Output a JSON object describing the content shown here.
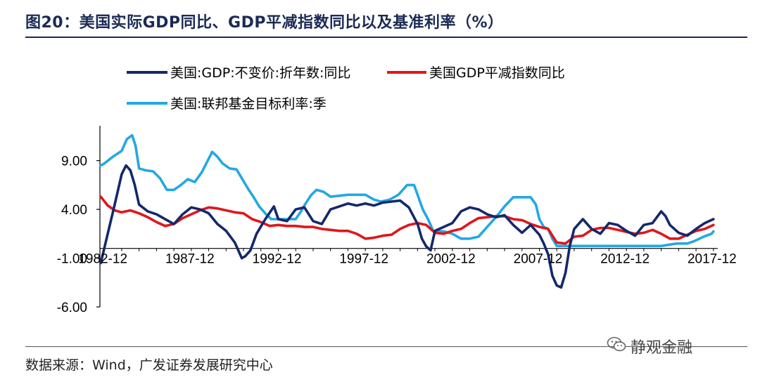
{
  "header": {
    "title": "图20：美国实际GDP同比、GDP平减指数同比以及基准利率（%）"
  },
  "footer": {
    "source": "数据来源：Wind，广发证券发展研究中心",
    "brand": "静观金融"
  },
  "colors": {
    "gdp": "#14286b",
    "deflator": "#e0161b",
    "fedfunds": "#23a8e2",
    "title": "#1b2a55"
  },
  "chart_data": {
    "type": "line",
    "title": "美国实际GDP同比、GDP平减指数同比以及基准利率（%）",
    "xlabel": "",
    "ylabel": "",
    "xlim": [
      1982.75,
      2018.25
    ],
    "ylim": [
      -6,
      12
    ],
    "y_ticks": [
      9.0,
      4.0,
      -1.0,
      -6.0
    ],
    "y_tick_labels": [
      "9.00",
      "4.00",
      "-1.00",
      "-6.00"
    ],
    "x_tick_positions": [
      1982.92,
      1987.92,
      1992.92,
      1997.92,
      2002.92,
      2007.92,
      2012.92,
      2017.92
    ],
    "x_tick_labels": [
      "1982-12",
      "1987-12",
      "1992-12",
      "1997-12",
      "2002-12",
      "2007-12",
      "2012-12",
      "2017-12"
    ],
    "legend_placement": "top",
    "series": [
      {
        "name": "美国:GDP:不变价:折年数:同比",
        "color": "#14286b",
        "x": [
          1982.8,
          1983.2,
          1983.6,
          1984.0,
          1984.25,
          1984.5,
          1984.75,
          1985.0,
          1985.5,
          1986.0,
          1986.5,
          1987.0,
          1987.5,
          1988.0,
          1988.5,
          1989.0,
          1989.5,
          1990.0,
          1990.5,
          1990.9,
          1991.1,
          1991.4,
          1991.75,
          1992.25,
          1992.75,
          1993.0,
          1993.5,
          1994.0,
          1994.5,
          1995.0,
          1995.5,
          1996.0,
          1996.5,
          1997.0,
          1997.5,
          1998.0,
          1998.5,
          1999.0,
          1999.5,
          2000.0,
          2000.5,
          2001.0,
          2001.25,
          2001.5,
          2001.75,
          2002.0,
          2002.5,
          2003.0,
          2003.5,
          2004.0,
          2004.5,
          2005.0,
          2005.5,
          2006.0,
          2006.5,
          2007.0,
          2007.5,
          2008.0,
          2008.25,
          2008.5,
          2008.75,
          2009.0,
          2009.25,
          2009.5,
          2009.75,
          2010.0,
          2010.5,
          2011.0,
          2011.5,
          2012.0,
          2012.5,
          2013.0,
          2013.5,
          2014.0,
          2014.5,
          2015.0,
          2015.25,
          2015.5,
          2016.0,
          2016.5,
          2017.0,
          2017.5,
          2018.0
        ],
        "values": [
          -1.5,
          1.5,
          4.5,
          7.6,
          8.5,
          8.0,
          6.5,
          4.5,
          3.8,
          3.5,
          3.0,
          2.5,
          3.5,
          4.2,
          4.0,
          3.6,
          2.5,
          1.8,
          0.6,
          -1.0,
          -0.8,
          -0.2,
          1.5,
          3.0,
          4.3,
          3.0,
          2.8,
          4.0,
          4.2,
          2.8,
          2.5,
          4.0,
          4.3,
          4.6,
          4.4,
          4.6,
          4.4,
          4.7,
          4.8,
          4.9,
          4.2,
          2.5,
          1.0,
          0.2,
          -0.2,
          1.8,
          2.2,
          2.6,
          3.8,
          4.2,
          4.0,
          3.5,
          3.2,
          3.4,
          2.4,
          1.6,
          2.4,
          1.4,
          0.5,
          -0.6,
          -2.8,
          -3.8,
          -4.0,
          -2.5,
          0.3,
          2.0,
          3.0,
          2.0,
          1.5,
          2.6,
          2.4,
          1.8,
          1.3,
          2.4,
          2.6,
          3.8,
          3.3,
          2.4,
          1.6,
          1.3,
          2.0,
          2.6,
          3.0
        ]
      },
      {
        "name": "美国GDP平减指数同比",
        "color": "#e0161b",
        "x": [
          1982.8,
          1983.2,
          1983.6,
          1984.0,
          1984.5,
          1985.0,
          1985.5,
          1986.0,
          1986.5,
          1987.0,
          1987.5,
          1988.0,
          1988.5,
          1989.0,
          1989.5,
          1990.0,
          1990.5,
          1991.0,
          1991.5,
          1992.0,
          1992.5,
          1993.0,
          1993.5,
          1994.0,
          1994.5,
          1995.0,
          1995.5,
          1996.0,
          1996.5,
          1997.0,
          1997.5,
          1998.0,
          1998.5,
          1999.0,
          1999.5,
          2000.0,
          2000.5,
          2001.0,
          2001.5,
          2002.0,
          2002.5,
          2003.0,
          2003.5,
          2004.0,
          2004.5,
          2005.0,
          2005.5,
          2006.0,
          2006.5,
          2007.0,
          2007.5,
          2008.0,
          2008.5,
          2009.0,
          2009.5,
          2010.0,
          2010.5,
          2011.0,
          2011.5,
          2012.0,
          2012.5,
          2013.0,
          2013.5,
          2014.0,
          2014.5,
          2015.0,
          2015.5,
          2016.0,
          2016.5,
          2017.0,
          2017.5,
          2018.0
        ],
        "values": [
          5.3,
          4.4,
          3.9,
          3.7,
          3.9,
          3.6,
          3.2,
          2.7,
          2.3,
          2.5,
          3.1,
          3.5,
          3.9,
          4.2,
          4.1,
          3.9,
          3.7,
          3.6,
          3.0,
          2.7,
          2.3,
          2.4,
          2.3,
          2.3,
          2.2,
          2.2,
          2.0,
          1.9,
          1.8,
          1.8,
          1.5,
          1.0,
          1.1,
          1.3,
          1.4,
          2.0,
          2.4,
          2.6,
          2.4,
          1.6,
          1.5,
          1.8,
          2.0,
          2.6,
          3.1,
          3.2,
          3.3,
          3.3,
          3.0,
          2.9,
          2.5,
          2.2,
          2.0,
          0.6,
          0.5,
          1.2,
          1.3,
          1.9,
          2.1,
          2.1,
          1.9,
          1.7,
          1.5,
          1.6,
          1.9,
          1.5,
          1.0,
          1.0,
          1.4,
          1.8,
          2.0,
          2.4
        ]
      },
      {
        "name": "美国:联邦基金目标利率:季",
        "color": "#23a8e2",
        "x": [
          1982.8,
          1983.0,
          1983.5,
          1984.0,
          1984.3,
          1984.6,
          1984.8,
          1985.0,
          1985.4,
          1985.8,
          1986.2,
          1986.6,
          1987.0,
          1987.4,
          1987.8,
          1988.2,
          1988.6,
          1989.0,
          1989.2,
          1989.5,
          1989.8,
          1990.2,
          1990.6,
          1991.0,
          1991.3,
          1991.6,
          1991.9,
          1992.3,
          1992.6,
          1993.0,
          1994.0,
          1994.3,
          1994.6,
          1994.9,
          1995.2,
          1995.6,
          1996.0,
          1997.0,
          1998.0,
          1998.5,
          1998.9,
          1999.4,
          1999.9,
          2000.4,
          2000.8,
          2001.0,
          2001.3,
          2001.6,
          2001.9,
          2002.5,
          2003.0,
          2003.5,
          2004.0,
          2004.5,
          2005.0,
          2005.5,
          2006.0,
          2006.5,
          2007.0,
          2007.5,
          2007.8,
          2008.0,
          2008.25,
          2008.5,
          2008.75,
          2009.0,
          2010.0,
          2011.0,
          2012.0,
          2013.0,
          2014.0,
          2015.0,
          2015.9,
          2016.5,
          2016.9,
          2017.5,
          2017.9,
          2018.0
        ],
        "values": [
          8.5,
          8.7,
          9.4,
          10.0,
          11.2,
          11.6,
          10.5,
          8.2,
          8.0,
          7.9,
          7.2,
          6.0,
          6.0,
          6.5,
          7.1,
          6.8,
          7.8,
          9.2,
          9.9,
          9.4,
          8.7,
          8.2,
          8.1,
          6.9,
          6.0,
          5.2,
          4.3,
          3.5,
          3.0,
          3.0,
          3.0,
          3.8,
          4.7,
          5.5,
          6.0,
          5.8,
          5.3,
          5.5,
          5.5,
          5.0,
          4.8,
          5.0,
          5.5,
          6.5,
          6.5,
          5.5,
          4.0,
          3.0,
          1.8,
          1.75,
          1.5,
          1.0,
          1.0,
          1.2,
          2.2,
          3.2,
          4.3,
          5.25,
          5.25,
          5.25,
          4.5,
          3.0,
          2.2,
          2.0,
          1.0,
          0.25,
          0.25,
          0.25,
          0.25,
          0.25,
          0.25,
          0.25,
          0.5,
          0.5,
          0.75,
          1.25,
          1.5,
          1.75
        ]
      }
    ]
  }
}
